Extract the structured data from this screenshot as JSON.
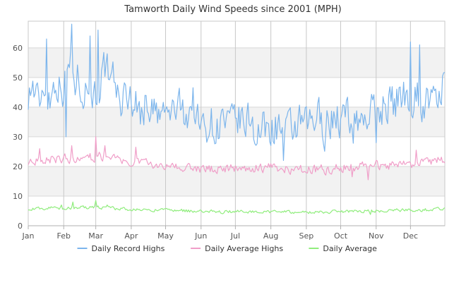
{
  "chart_data": {
    "type": "line",
    "title": "Tamworth Daily Wind Speeds since 2001 (MPH)",
    "xlabel": "",
    "ylabel": "",
    "ylim": [
      0,
      69
    ],
    "yticks": [
      0,
      10,
      20,
      30,
      40,
      50,
      60
    ],
    "xlim": [
      1,
      365
    ],
    "x_unit": "day of year",
    "month_ticks": [
      {
        "label": "Jan",
        "day": 1
      },
      {
        "label": "Feb",
        "day": 32
      },
      {
        "label": "Mar",
        "day": 60
      },
      {
        "label": "Apr",
        "day": 91
      },
      {
        "label": "May",
        "day": 121
      },
      {
        "label": "Jun",
        "day": 152
      },
      {
        "label": "Jul",
        "day": 182
      },
      {
        "label": "Aug",
        "day": 213
      },
      {
        "label": "Sep",
        "day": 244
      },
      {
        "label": "Oct",
        "day": 274
      },
      {
        "label": "Nov",
        "day": 305
      },
      {
        "label": "Dec",
        "day": 335
      }
    ],
    "grid": true,
    "alternating_bands": true,
    "legend_position": "bottom-center",
    "series": [
      {
        "name": "Daily Record Highs",
        "color": "#7cb5ec",
        "anchors": [
          [
            1,
            45
          ],
          [
            5,
            47
          ],
          [
            10,
            41
          ],
          [
            15,
            48
          ],
          [
            20,
            43
          ],
          [
            25,
            50
          ],
          [
            30,
            46
          ],
          [
            32,
            47
          ],
          [
            35,
            52
          ],
          [
            38,
            55
          ],
          [
            42,
            49
          ],
          [
            45,
            50
          ],
          [
            50,
            46
          ],
          [
            55,
            47
          ],
          [
            60,
            44
          ],
          [
            63,
            48
          ],
          [
            68,
            53
          ],
          [
            72,
            43
          ],
          [
            76,
            50
          ],
          [
            80,
            42
          ],
          [
            85,
            43
          ],
          [
            90,
            44
          ],
          [
            95,
            41
          ],
          [
            100,
            38
          ],
          [
            105,
            42
          ],
          [
            110,
            39
          ],
          [
            115,
            36
          ],
          [
            120,
            38
          ],
          [
            125,
            37
          ],
          [
            130,
            40
          ],
          [
            135,
            39
          ],
          [
            140,
            38
          ],
          [
            145,
            42
          ],
          [
            150,
            34
          ],
          [
            155,
            33
          ],
          [
            160,
            36
          ],
          [
            165,
            32
          ],
          [
            170,
            36
          ],
          [
            175,
            33
          ],
          [
            180,
            34
          ],
          [
            185,
            36
          ],
          [
            190,
            33
          ],
          [
            195,
            37
          ],
          [
            200,
            31
          ],
          [
            205,
            32
          ],
          [
            210,
            33
          ],
          [
            215,
            33
          ],
          [
            220,
            34
          ],
          [
            225,
            30
          ],
          [
            230,
            32
          ],
          [
            235,
            33
          ],
          [
            240,
            34
          ],
          [
            245,
            33
          ],
          [
            250,
            35
          ],
          [
            255,
            37
          ],
          [
            260,
            33
          ],
          [
            265,
            36
          ],
          [
            270,
            37
          ],
          [
            275,
            35
          ],
          [
            280,
            38
          ],
          [
            285,
            34
          ],
          [
            290,
            36
          ],
          [
            295,
            37
          ],
          [
            300,
            38
          ],
          [
            305,
            39
          ],
          [
            310,
            40
          ],
          [
            315,
            42
          ],
          [
            320,
            41
          ],
          [
            325,
            43
          ],
          [
            330,
            45
          ],
          [
            335,
            42
          ],
          [
            340,
            46
          ],
          [
            345,
            40
          ],
          [
            350,
            43
          ],
          [
            355,
            41
          ],
          [
            360,
            45
          ],
          [
            365,
            48
          ]
        ],
        "amplitude": 6.5,
        "spikes": [
          [
            39,
            68
          ],
          [
            62,
            66
          ],
          [
            55,
            64
          ],
          [
            17,
            63
          ],
          [
            335,
            62
          ],
          [
            343,
            61
          ],
          [
            70,
            58
          ]
        ],
        "dips": [
          [
            34,
            30
          ],
          [
            224,
            22
          ],
          [
            305,
            28
          ]
        ]
      },
      {
        "name": "Daily Average Highs",
        "color": "#f09ec8",
        "anchors": [
          [
            1,
            22
          ],
          [
            15,
            22.5
          ],
          [
            30,
            22.5
          ],
          [
            45,
            23
          ],
          [
            60,
            23
          ],
          [
            70,
            24
          ],
          [
            80,
            22
          ],
          [
            90,
            21
          ],
          [
            100,
            21.5
          ],
          [
            110,
            21
          ],
          [
            120,
            20.5
          ],
          [
            130,
            20.5
          ],
          [
            140,
            20
          ],
          [
            152,
            19
          ],
          [
            165,
            19
          ],
          [
            182,
            19.5
          ],
          [
            200,
            19.5
          ],
          [
            213,
            19.5
          ],
          [
            230,
            19
          ],
          [
            244,
            19
          ],
          [
            260,
            19
          ],
          [
            274,
            19.5
          ],
          [
            290,
            20
          ],
          [
            305,
            20.5
          ],
          [
            320,
            20.5
          ],
          [
            335,
            21
          ],
          [
            350,
            21
          ],
          [
            365,
            22.5
          ]
        ],
        "amplitude": 1.6,
        "spikes": [
          [
            60,
            30
          ],
          [
            39,
            27
          ],
          [
            68,
            27
          ],
          [
            95,
            26.5
          ],
          [
            340,
            25.5
          ],
          [
            11,
            26
          ]
        ],
        "dips": [
          [
            298,
            15.5
          ],
          [
            284,
            16.5
          ]
        ]
      },
      {
        "name": "Daily Average",
        "color": "#90ed7d",
        "anchors": [
          [
            1,
            5.8
          ],
          [
            30,
            6
          ],
          [
            45,
            6.2
          ],
          [
            60,
            6.2
          ],
          [
            75,
            5.8
          ],
          [
            90,
            5.5
          ],
          [
            105,
            5.4
          ],
          [
            120,
            5.2
          ],
          [
            140,
            5
          ],
          [
            152,
            4.8
          ],
          [
            170,
            4.7
          ],
          [
            182,
            4.8
          ],
          [
            200,
            4.8
          ],
          [
            213,
            4.7
          ],
          [
            230,
            4.6
          ],
          [
            244,
            4.6
          ],
          [
            260,
            4.7
          ],
          [
            274,
            4.8
          ],
          [
            290,
            4.9
          ],
          [
            305,
            5
          ],
          [
            320,
            5.2
          ],
          [
            335,
            5.3
          ],
          [
            350,
            5.4
          ],
          [
            365,
            5.8
          ]
        ],
        "amplitude": 0.55,
        "spikes": [
          [
            60,
            8.5
          ],
          [
            40,
            8
          ],
          [
            30,
            7
          ],
          [
            70,
            7
          ]
        ],
        "dips": [
          [
            300,
            3.8
          ]
        ]
      }
    ]
  }
}
